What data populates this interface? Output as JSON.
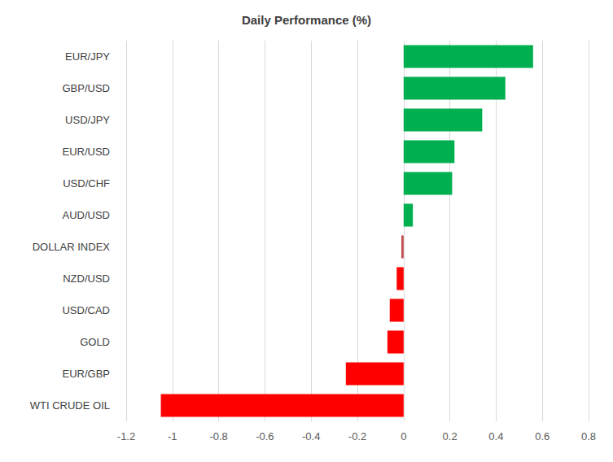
{
  "chart_data": {
    "type": "bar",
    "title": "Daily Performance (%)",
    "orientation": "horizontal",
    "categories": [
      "EUR/JPY",
      "GBP/USD",
      "USD/JPY",
      "EUR/USD",
      "USD/CHF",
      "AUD/USD",
      "DOLLAR INDEX",
      "NZD/USD",
      "USD/CAD",
      "GOLD",
      "EUR/GBP",
      "WTI CRUDE OIL"
    ],
    "values": [
      0.56,
      0.44,
      0.34,
      0.22,
      0.21,
      0.04,
      -0.01,
      -0.03,
      -0.06,
      -0.07,
      -0.25,
      -1.05
    ],
    "colors": [
      "#00b050",
      "#00b050",
      "#00b050",
      "#00b050",
      "#00b050",
      "#00b050",
      "#c0504d",
      "#ff0000",
      "#ff0000",
      "#ff0000",
      "#ff0000",
      "#ff0000"
    ],
    "xlim": [
      -1.2,
      0.8
    ],
    "xticks": [
      -1.2,
      -1,
      -0.8,
      -0.6,
      -0.4,
      -0.2,
      0,
      0.2,
      0.4,
      0.6,
      0.8
    ],
    "grid": true,
    "data_labels": false
  }
}
